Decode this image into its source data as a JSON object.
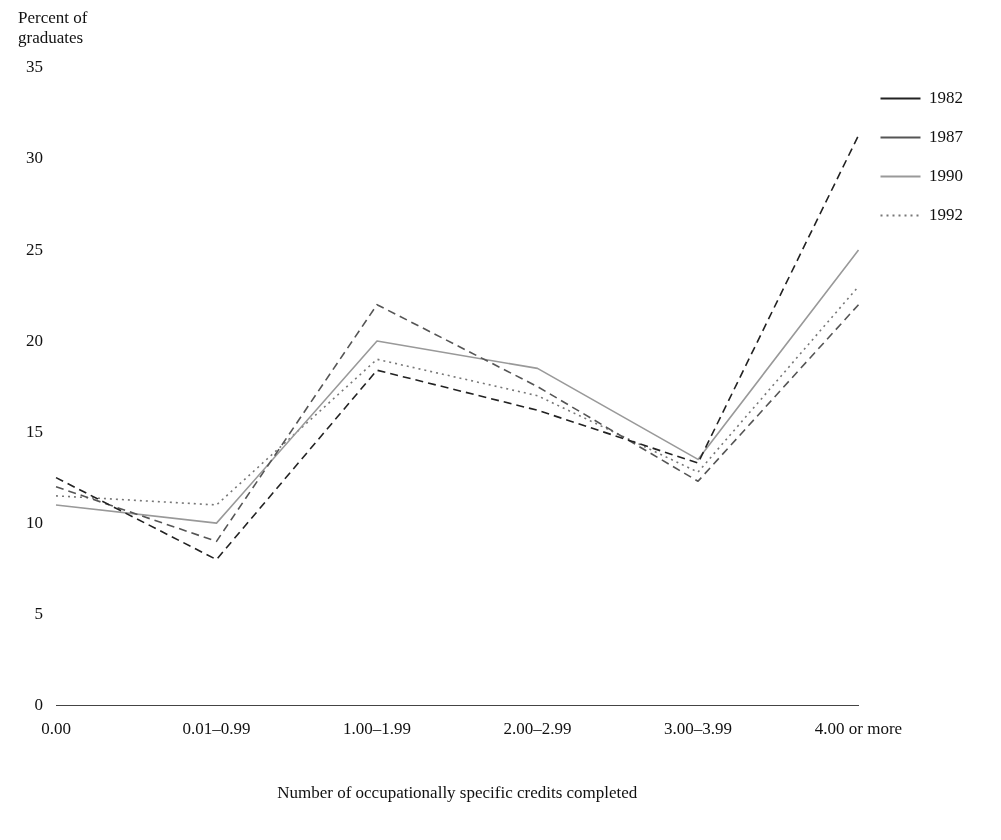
{
  "chart_data": {
    "type": "line",
    "ylabel": "Percent of graduates",
    "xlabel": "Number of occupationally specific credits completed",
    "categories": [
      "0.00",
      "0.01–0.99",
      "1.00–1.99",
      "2.00–2.99",
      "3.00–3.99",
      "4.00 or more"
    ],
    "series": [
      {
        "name": "1982",
        "color": "#222222",
        "line_style": "dashed",
        "values": [
          12.5,
          8,
          18.4,
          16.2,
          13.3,
          31.3
        ]
      },
      {
        "name": "1987",
        "color": "#555555",
        "line_style": "dashed",
        "values": [
          12,
          9,
          22,
          17.5,
          12.3,
          22
        ]
      },
      {
        "name": "1990",
        "color": "#999999",
        "line_style": "solid",
        "values": [
          11,
          10,
          20,
          18.5,
          13.5,
          25
        ]
      },
      {
        "name": "1992",
        "color": "#777777",
        "line_style": "dotted",
        "values": [
          11.5,
          11,
          19,
          17,
          12.8,
          23
        ]
      }
    ],
    "ylim": [
      0,
      35
    ],
    "yticks": [
      0,
      5,
      10,
      15,
      20,
      25,
      30,
      35
    ],
    "grid": false,
    "legend": "right",
    "marker": "none"
  }
}
